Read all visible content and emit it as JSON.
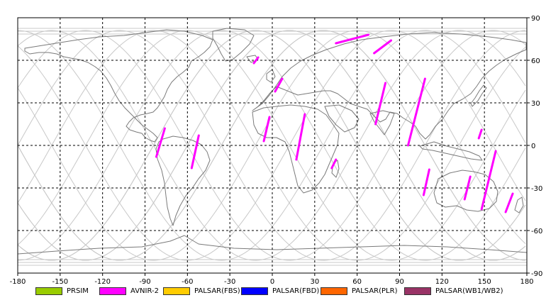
{
  "map": {
    "lon_range": [
      -180,
      180
    ],
    "lat_range": [
      -90,
      90
    ],
    "grid": "dashed",
    "x_ticks": [
      -180,
      -150,
      -120,
      -90,
      -60,
      -30,
      0,
      30,
      60,
      90,
      120,
      150,
      180
    ],
    "y_ticks": [
      90,
      60,
      30,
      0,
      -30,
      -60,
      -90
    ],
    "colors": {
      "coastline": "#7a7a7a",
      "orbit_tracks": "#c8c8c8",
      "grid": "#000000",
      "swath": "#ff00ff"
    }
  },
  "legend": [
    {
      "label": "PRSIM",
      "color": "#99cc00"
    },
    {
      "label": "AVNIR-2",
      "color": "#ff00ff"
    },
    {
      "label": "PALSAR(FBS)",
      "color": "#ffcc00"
    },
    {
      "label": "PALSAR(FBD)",
      "color": "#0000ff"
    },
    {
      "label": "PALSAR(PLR)",
      "color": "#ff6600"
    },
    {
      "label": "PALSAR(WB1/WB2)",
      "color": "#993366"
    }
  ],
  "chart_data": {
    "type": "map",
    "series_name": "AVNIR-2",
    "swaths": [
      {
        "from": [
          -10,
          62
        ],
        "to": [
          -13,
          58
        ]
      },
      {
        "from": [
          7,
          47
        ],
        "to": [
          2,
          38
        ]
      },
      {
        "from": [
          -76,
          12
        ],
        "to": [
          -82,
          -8
        ]
      },
      {
        "from": [
          -52,
          7
        ],
        "to": [
          -57,
          -16
        ]
      },
      {
        "from": [
          -2,
          20
        ],
        "to": [
          -6,
          3
        ]
      },
      {
        "from": [
          23,
          22
        ],
        "to": [
          17,
          -10
        ]
      },
      {
        "from": [
          45,
          72
        ],
        "to": [
          68,
          78
        ]
      },
      {
        "from": [
          72,
          65
        ],
        "to": [
          84,
          74
        ]
      },
      {
        "from": [
          80,
          44
        ],
        "to": [
          73,
          15
        ]
      },
      {
        "from": [
          108,
          47
        ],
        "to": [
          96,
          0
        ]
      },
      {
        "from": [
          111,
          -17
        ],
        "to": [
          107,
          -35
        ]
      },
      {
        "from": [
          148,
          11
        ],
        "to": [
          146,
          5
        ]
      },
      {
        "from": [
          158,
          -4
        ],
        "to": [
          148,
          -45
        ]
      },
      {
        "from": [
          140,
          -22
        ],
        "to": [
          136,
          -38
        ]
      },
      {
        "from": [
          170,
          -34
        ],
        "to": [
          165,
          -47
        ]
      },
      {
        "from": [
          45,
          -10
        ],
        "to": [
          42,
          -16
        ]
      }
    ]
  }
}
